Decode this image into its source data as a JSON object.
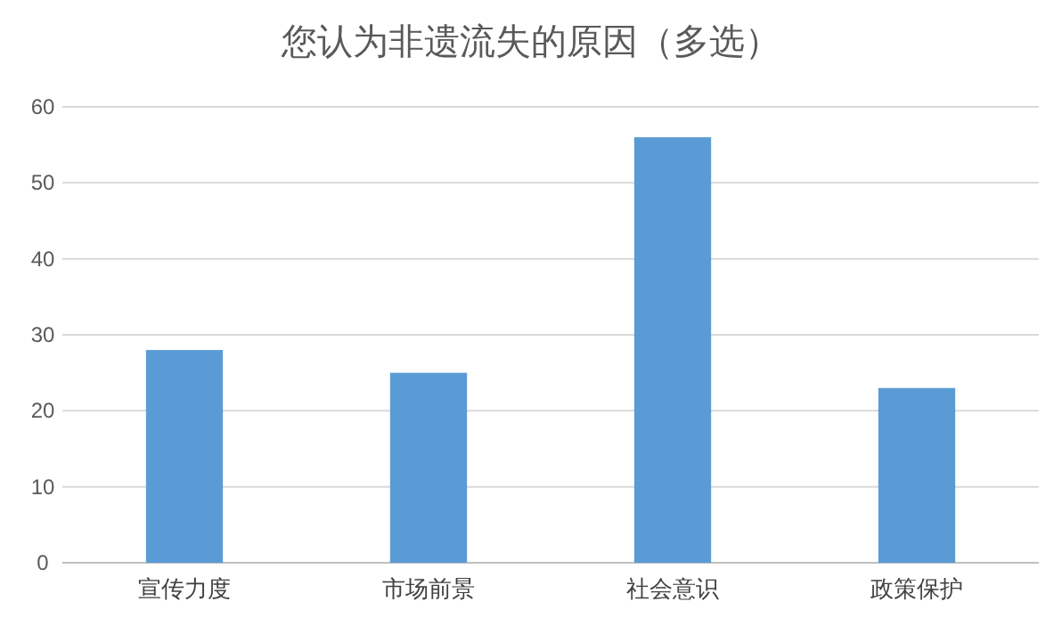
{
  "chart_data": {
    "type": "bar",
    "title": "您认为非遗流失的原因（多选）",
    "categories": [
      "宣传力度",
      "市场前景",
      "社会意识",
      "政策保护"
    ],
    "values": [
      28,
      25,
      56,
      23
    ],
    "color": "#5b9bd5",
    "ylim": [
      0,
      60
    ],
    "yticks": [
      0,
      10,
      20,
      30,
      40,
      50,
      60
    ],
    "grid": "y"
  }
}
